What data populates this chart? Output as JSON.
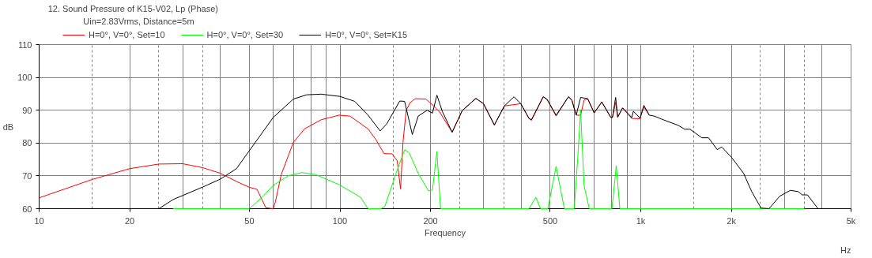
{
  "chart_data": {
    "type": "line",
    "title": "12. Sound Pressure of K15-V02, Lp (Phase)",
    "ylabel": "dB",
    "xlabel": "Frequency",
    "annotations": [
      "Uin=2.83Vrms, Distance=5m",
      "Hz"
    ],
    "log": "x",
    "xlim": [
      10,
      5000
    ],
    "ylim": [
      60,
      110
    ],
    "xticks": [
      10,
      20,
      50,
      100,
      200,
      500,
      {
        "value": 1000,
        "label": "1k"
      },
      {
        "value": 2000,
        "label": "2k"
      },
      {
        "value": 5000,
        "label": "5k"
      }
    ],
    "yticks": [
      60,
      70,
      80,
      90,
      100,
      110
    ],
    "grid": true,
    "legend": "top left",
    "series": [
      {
        "name": "H=0°, V=0°, Set=10",
        "color": "#ff0000",
        "x": [
          10,
          15,
          20,
          25,
          30,
          35,
          40,
          45.3,
          50,
          53,
          56.7,
          60,
          61,
          63.8,
          70,
          76.2,
          86.6,
          99.5,
          108,
          124,
          132,
          140,
          149,
          155,
          159,
          162,
          166,
          171,
          178,
          193,
          205,
          214,
          236,
          255,
          283,
          300,
          326,
          352,
          399,
          425,
          433,
          474,
          488,
          523,
          575,
          590,
          610,
          631,
          648,
          666,
          700,
          742,
          795,
          805,
          825,
          838,
          870,
          933,
          994,
          1024,
          1067
        ],
        "values": [
          63.3,
          68.9,
          72.2,
          73.6,
          73.7,
          72.5,
          70.8,
          68.3,
          66.5,
          65.9,
          60.3,
          60,
          62.1,
          70.4,
          80.2,
          84.3,
          87.1,
          88.5,
          88.2,
          84.3,
          80.9,
          76.8,
          76.7,
          74.6,
          66.0,
          80.2,
          89.9,
          92.3,
          93.5,
          93.4,
          91.3,
          89.6,
          83.3,
          89.9,
          93.6,
          92.0,
          85.5,
          91.3,
          92.0,
          87.5,
          86.9,
          94.1,
          93.3,
          88.2,
          94.1,
          93.1,
          88.5,
          88.5,
          93.1,
          93.5,
          89.2,
          92.5,
          87.8,
          87.8,
          92.4,
          87.9,
          90.7,
          87.5,
          87.4,
          91.0,
          88.5
        ]
      },
      {
        "name": "H=0°, V=0°, Set=30",
        "color": "#00ff00",
        "x": [
          27.9,
          50,
          55.5,
          60,
          67.6,
          74.8,
          83,
          99.5,
          117,
          124,
          137,
          141,
          155,
          164,
          170,
          182,
          197,
          203,
          210,
          216,
          425,
          448,
          464,
          491,
          523,
          557,
          601,
          617,
          631,
          648,
          674,
          802,
          829,
          852,
          3500
        ],
        "values": [
          60,
          60,
          63.8,
          67.1,
          70.1,
          71.0,
          70.4,
          67.3,
          63.5,
          60,
          60,
          60.7,
          71.8,
          77.9,
          77.0,
          70.8,
          65.4,
          65.7,
          77.4,
          60,
          60,
          63.5,
          60,
          60,
          72.9,
          60,
          60,
          75.3,
          89.9,
          67.0,
          60,
          60,
          73.1,
          60,
          60
        ]
      },
      {
        "name": "H=0°, V=0°, Set=K15",
        "color": "#000000",
        "x": [
          10,
          25,
          27.9,
          35,
          40,
          45.3,
          50,
          60,
          70,
          77.5,
          86.6,
          100,
          112,
          124,
          136,
          143,
          158,
          164,
          174,
          182,
          195,
          203,
          210,
          219,
          236,
          255,
          283,
          300,
          326,
          352,
          379,
          399,
          425,
          433,
          474,
          488,
          523,
          575,
          590,
          610,
          631,
          666,
          700,
          742,
          795,
          805,
          825,
          838,
          870,
          933,
          945,
          994,
          1024,
          1067,
          1110,
          1180,
          1331,
          1400,
          1458,
          1596,
          1680,
          1795,
          1858,
          2000,
          2196,
          2338,
          2510,
          2668,
          2896,
          3142,
          3339,
          3441,
          3582,
          3884,
          5000
        ],
        "values": [
          60,
          60,
          62.8,
          66.6,
          69.0,
          72.2,
          77.7,
          87.8,
          93.4,
          94.7,
          94.9,
          94.2,
          92.7,
          88.5,
          83.7,
          85.8,
          92.8,
          92.7,
          82.6,
          88.2,
          90.0,
          89.1,
          94.6,
          89.6,
          83.3,
          89.9,
          93.6,
          92.0,
          85.5,
          91.3,
          94.1,
          92.0,
          87.5,
          87.1,
          94.1,
          93.3,
          88.5,
          94.1,
          93.1,
          88.5,
          93.9,
          93.5,
          89.2,
          92.5,
          87.8,
          87.8,
          93.9,
          87.9,
          90.7,
          87.8,
          89.7,
          87.6,
          91.5,
          88.5,
          88.2,
          87.2,
          85.4,
          84.2,
          84.2,
          81.6,
          81.6,
          78.0,
          78.8,
          75.7,
          70.8,
          65.2,
          60.2,
          60,
          63.8,
          65.6,
          65.2,
          64.2,
          64.2,
          60,
          60
        ]
      }
    ]
  }
}
